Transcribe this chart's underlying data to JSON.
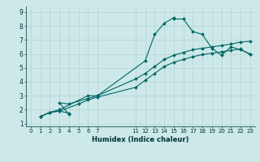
{
  "xlabel": "Humidex (Indice chaleur)",
  "bg_color": "#cce8e8",
  "grid_color": "#b8d8d8",
  "line_color": "#006666",
  "marker_color": "#006666",
  "xlim": [
    -0.5,
    23.5
  ],
  "ylim": [
    0.8,
    9.4
  ],
  "xticks": [
    0,
    1,
    2,
    3,
    4,
    5,
    6,
    7,
    11,
    12,
    13,
    14,
    15,
    16,
    17,
    18,
    19,
    20,
    21,
    22,
    23
  ],
  "yticks": [
    1,
    2,
    3,
    4,
    5,
    6,
    7,
    8,
    9
  ],
  "lines": [
    {
      "x": [
        1,
        2,
        3,
        4,
        4,
        3,
        4,
        6,
        7,
        12,
        13,
        14,
        15,
        15,
        16,
        17,
        18,
        19,
        20,
        21,
        22,
        23
      ],
      "y": [
        1.5,
        1.8,
        1.9,
        1.75,
        1.65,
        2.5,
        2.4,
        2.8,
        3.0,
        5.5,
        7.4,
        8.2,
        8.6,
        8.5,
        8.5,
        7.6,
        7.4,
        6.4,
        5.9,
        6.5,
        6.3,
        6.0
      ]
    },
    {
      "x": [
        1,
        2,
        3,
        6,
        7,
        11,
        12,
        13,
        14,
        15,
        16,
        17,
        18,
        19,
        20,
        21,
        22,
        23
      ],
      "y": [
        1.5,
        1.8,
        2.0,
        3.0,
        3.0,
        4.2,
        4.6,
        5.1,
        5.6,
        5.9,
        6.1,
        6.3,
        6.4,
        6.5,
        6.6,
        6.7,
        6.85,
        6.9
      ]
    },
    {
      "x": [
        1,
        2,
        3,
        5,
        6,
        7,
        11,
        12,
        13,
        14,
        15,
        16,
        17,
        18,
        19,
        20,
        21,
        22,
        23
      ],
      "y": [
        1.5,
        1.8,
        1.9,
        2.4,
        2.7,
        2.9,
        3.6,
        4.1,
        4.6,
        5.1,
        5.4,
        5.6,
        5.8,
        5.95,
        6.05,
        6.15,
        6.25,
        6.35,
        5.95
      ]
    }
  ]
}
